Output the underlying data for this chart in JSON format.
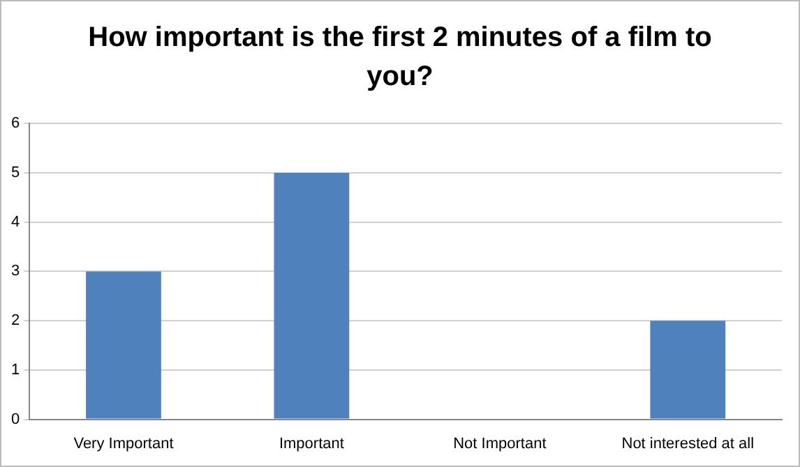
{
  "chart_data": {
    "type": "bar",
    "title": "How important is the first 2 minutes of a film to you?",
    "categories": [
      "Very Important",
      "Important",
      "Not Important",
      "Not interested at all"
    ],
    "values": [
      3,
      5,
      0,
      2
    ],
    "color": "#4f81bd",
    "ylim": [
      0,
      6
    ],
    "yticks": [
      0,
      1,
      2,
      3,
      4,
      5,
      6
    ],
    "grid": "y",
    "legend": false
  }
}
